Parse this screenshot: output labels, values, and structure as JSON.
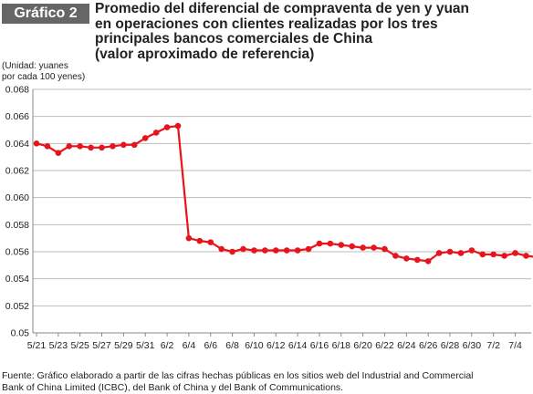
{
  "badge": "Gráfico 2",
  "title_lines": [
    "Promedio del diferencial de compraventa de yen y yuan",
    "en operaciones con clientes realizadas por los tres",
    "principales bancos comerciales de China",
    "(valor aproximado de referencia)"
  ],
  "unit_lines": [
    "(Unidad: yuanes",
    "por cada 100 yenes)"
  ],
  "source_lines": [
    "Fuente: Gráfico elaborado a partir de las cifras hechas públicas en los sitios web del Industrial and Commercial",
    "Bank of China Limited (ICBC), del Bank of China y del Bank of Communications."
  ],
  "colors": {
    "line": "#e8141b",
    "grid": "#bdbdbd",
    "badge": "#666666"
  },
  "chart_data": {
    "type": "line",
    "title": "Promedio del diferencial de compraventa de yen y yuan en operaciones con clientes realizadas por los tres principales bancos comerciales de China (valor aproximado de referencia)",
    "ylabel": "(Unidad: yuanes por cada 100 yenes)",
    "xlabel": "",
    "ylim": [
      0.05,
      0.068
    ],
    "yticks": [
      "0.05",
      "0.052",
      "0.054",
      "0.056",
      "0.058",
      "0.060",
      "0.062",
      "0.064",
      "0.066",
      "0.068"
    ],
    "grid": "horizontal",
    "x_tick_labels": [
      "5/21",
      "5/23",
      "5/25",
      "5/27",
      "5/29",
      "5/31",
      "6/2",
      "6/4",
      "6/6",
      "6/8",
      "6/10",
      "6/12",
      "6/14",
      "6/16",
      "6/18",
      "6/20",
      "6/22",
      "6/24",
      "6/26",
      "6/28",
      "6/30",
      "7/2",
      "7/4"
    ],
    "series": [
      {
        "values": [
          0.064,
          0.0638,
          0.0633,
          0.0638,
          0.0638,
          0.0637,
          0.0637,
          0.0638,
          0.0639,
          0.0639,
          0.0644,
          0.0648,
          0.0652,
          0.0653,
          0.057,
          0.0568,
          0.0567,
          0.0562,
          0.056,
          0.0562,
          0.0561,
          0.0561,
          0.0561,
          0.0561,
          0.0561,
          0.0562,
          0.0566,
          0.0566,
          0.0565,
          0.0564,
          0.0563,
          0.0563,
          0.0562,
          0.0557,
          0.0555,
          0.0554,
          0.0553,
          0.0559,
          0.056,
          0.0559,
          0.0561,
          0.0558,
          0.0558,
          0.0557,
          0.0559,
          0.0557,
          0.0556
        ]
      }
    ]
  }
}
